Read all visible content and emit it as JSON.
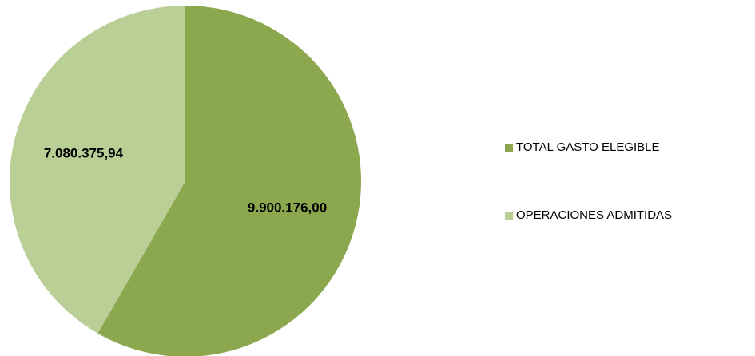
{
  "chart_data": {
    "type": "pie",
    "categories": [
      "TOTAL GASTO ELEGIBLE",
      "OPERACIONES ADMITIDAS"
    ],
    "values": [
      9900176.0,
      7080375.94
    ],
    "value_labels": [
      "9.900.176,00",
      "7.080.375,94"
    ],
    "colors": [
      "#8ba84f",
      "#bacf96"
    ],
    "legend": "right"
  }
}
